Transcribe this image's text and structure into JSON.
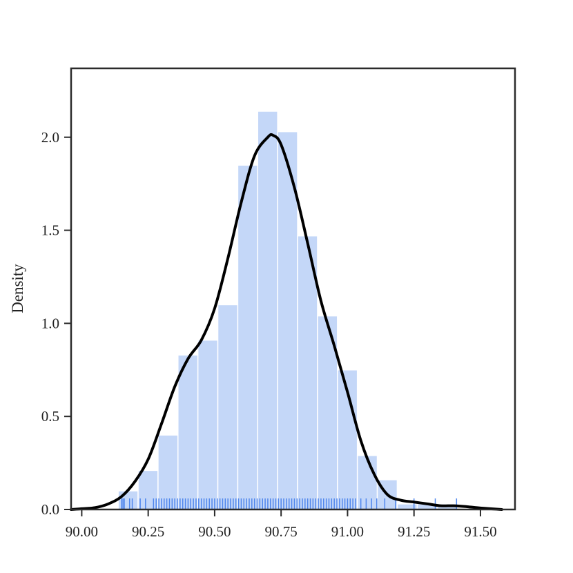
{
  "chart_data": {
    "type": "histogram",
    "title": "",
    "xlabel": "",
    "ylabel": "Density",
    "xlim": [
      89.96,
      91.63
    ],
    "ylim": [
      0.0,
      2.37
    ],
    "x_ticks": [
      90.0,
      90.25,
      90.5,
      90.75,
      91.0,
      91.25,
      91.5
    ],
    "x_tick_labels": [
      "90.00",
      "90.25",
      "90.50",
      "90.75",
      "91.00",
      "91.25",
      "91.50"
    ],
    "y_ticks": [
      0.0,
      0.5,
      1.0,
      1.5,
      2.0
    ],
    "y_tick_labels": [
      "0.0",
      "0.5",
      "1.0",
      "1.5",
      "2.0"
    ],
    "grid": false,
    "histogram": {
      "bin_edges": [
        90.137,
        90.212,
        90.287,
        90.362,
        90.437,
        90.512,
        90.587,
        90.662,
        90.737,
        90.812,
        90.887,
        90.962,
        91.037,
        91.112,
        91.187,
        91.262,
        91.337,
        91.412
      ],
      "densities": [
        0.1,
        0.21,
        0.4,
        0.83,
        0.91,
        1.1,
        1.85,
        2.14,
        2.03,
        1.47,
        1.04,
        0.75,
        0.29,
        0.16,
        0.03,
        0.03,
        0.03
      ],
      "color": "#a4c2f4",
      "fill_opacity": 0.65
    },
    "kde": {
      "color": "#000000",
      "x": [
        89.96,
        90.0,
        90.05,
        90.1,
        90.15,
        90.2,
        90.25,
        90.3,
        90.35,
        90.4,
        90.45,
        90.5,
        90.55,
        90.6,
        90.65,
        90.7,
        90.72,
        90.75,
        90.8,
        90.85,
        90.9,
        90.95,
        91.0,
        91.05,
        91.1,
        91.15,
        91.2,
        91.25,
        91.3,
        91.35,
        91.4,
        91.45,
        91.5,
        91.58
      ],
      "y": [
        0.0,
        0.004,
        0.01,
        0.03,
        0.07,
        0.15,
        0.27,
        0.46,
        0.66,
        0.81,
        0.91,
        1.08,
        1.35,
        1.65,
        1.9,
        2.0,
        2.01,
        1.96,
        1.73,
        1.43,
        1.12,
        0.88,
        0.63,
        0.37,
        0.19,
        0.08,
        0.05,
        0.04,
        0.03,
        0.02,
        0.02,
        0.015,
        0.008,
        0.0
      ]
    },
    "rug": {
      "color": "#4f86ec",
      "values": [
        90.15,
        90.155,
        90.16,
        90.18,
        90.19,
        90.22,
        90.24,
        90.27,
        90.28,
        90.29,
        90.3,
        90.31,
        90.32,
        90.33,
        90.34,
        90.35,
        90.36,
        90.37,
        90.38,
        90.39,
        90.4,
        90.41,
        90.42,
        90.43,
        90.44,
        90.45,
        90.46,
        90.47,
        90.48,
        90.49,
        90.5,
        90.51,
        90.52,
        90.53,
        90.54,
        90.55,
        90.56,
        90.57,
        90.58,
        90.59,
        90.6,
        90.61,
        90.62,
        90.63,
        90.64,
        90.65,
        90.66,
        90.67,
        90.68,
        90.69,
        90.7,
        90.71,
        90.72,
        90.73,
        90.74,
        90.75,
        90.76,
        90.77,
        90.78,
        90.79,
        90.8,
        90.81,
        90.82,
        90.83,
        90.84,
        90.85,
        90.86,
        90.87,
        90.88,
        90.89,
        90.9,
        90.91,
        90.92,
        90.93,
        90.94,
        90.95,
        90.96,
        90.97,
        90.98,
        90.99,
        91.0,
        91.01,
        91.02,
        91.03,
        91.05,
        91.07,
        91.09,
        91.11,
        91.14,
        91.18,
        91.25,
        91.33,
        91.41
      ]
    }
  }
}
